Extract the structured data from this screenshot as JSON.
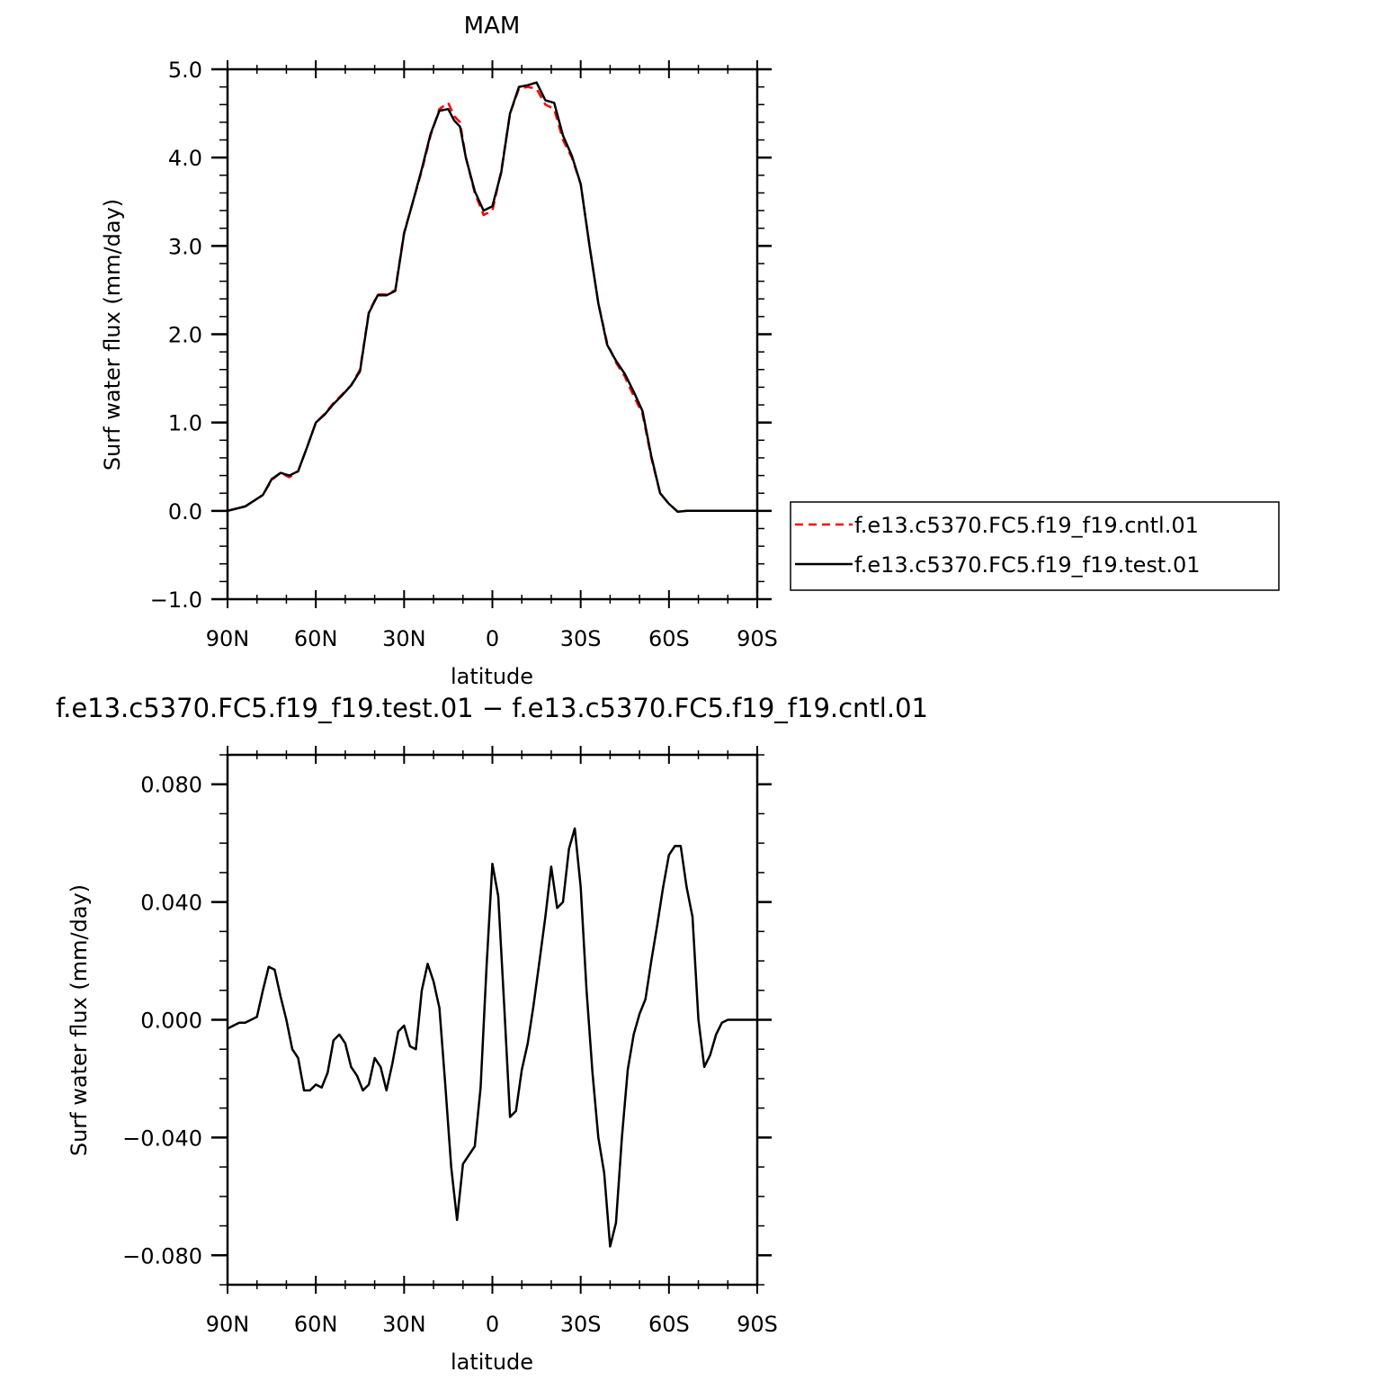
{
  "chart_data": [
    {
      "type": "line",
      "title": "MAM",
      "xlabel": "latitude",
      "ylabel": "Surf water flux (mm/day)",
      "xlim": [
        90,
        -90
      ],
      "ylim": [
        -1.0,
        5.0
      ],
      "x_ticks": [
        90,
        60,
        30,
        0,
        -30,
        -60,
        -90
      ],
      "x_tick_labels": [
        "90N",
        "60N",
        "30N",
        "0",
        "30S",
        "60S",
        "90S"
      ],
      "y_ticks": [
        -1.0,
        0.0,
        1.0,
        2.0,
        3.0,
        4.0,
        5.0
      ],
      "y_tick_labels": [
        "−1.0",
        "0.0",
        "1.0",
        "2.0",
        "3.0",
        "4.0",
        "5.0"
      ],
      "grid": false,
      "legend_position": "right",
      "series": [
        {
          "name": "f.e13.c5370.FC5.f19_f19.cntl.01",
          "color": "#ff0000",
          "dash": "dashed",
          "x": [
            90,
            84,
            78,
            75,
            72,
            69,
            66,
            63,
            60,
            57,
            54,
            51,
            48,
            45,
            42,
            39,
            36,
            33,
            30,
            27,
            24,
            21,
            18,
            15,
            13,
            11,
            9,
            6,
            3,
            0,
            -3,
            -6,
            -9,
            -12,
            -15,
            -18,
            -21,
            -24,
            -27,
            -30,
            -33,
            -36,
            -39,
            -42,
            -45,
            -48,
            -51,
            -54,
            -57,
            -60,
            -63,
            -66,
            -69,
            -72,
            -75,
            -78,
            -81,
            -84,
            -87,
            -90
          ],
          "y": [
            0.0,
            0.05,
            0.18,
            0.35,
            0.43,
            0.38,
            0.45,
            0.72,
            1.0,
            1.1,
            1.22,
            1.32,
            1.42,
            1.6,
            2.25,
            2.45,
            2.45,
            2.5,
            3.15,
            3.5,
            3.85,
            4.25,
            4.55,
            4.62,
            4.47,
            4.4,
            4.0,
            3.6,
            3.35,
            3.4,
            3.85,
            4.5,
            4.78,
            4.8,
            4.78,
            4.6,
            4.55,
            4.2,
            4.0,
            3.7,
            3.0,
            2.35,
            1.9,
            1.68,
            1.52,
            1.3,
            1.1,
            0.6,
            0.2,
            0.08,
            -0.01,
            0.0,
            0.0,
            0.0,
            0.0,
            0.0,
            0.0,
            0.0,
            0.0,
            0.0
          ]
        },
        {
          "name": "f.e13.c5370.FC5.f19_f19.test.01",
          "color": "#000000",
          "dash": "solid",
          "x": [
            90,
            84,
            78,
            75,
            72,
            69,
            66,
            63,
            60,
            57,
            54,
            51,
            48,
            45,
            42,
            39,
            36,
            33,
            30,
            27,
            24,
            21,
            18,
            15,
            13,
            11,
            9,
            6,
            3,
            0,
            -3,
            -6,
            -9,
            -12,
            -15,
            -18,
            -21,
            -24,
            -27,
            -30,
            -33,
            -36,
            -39,
            -42,
            -45,
            -48,
            -51,
            -54,
            -57,
            -60,
            -63,
            -66,
            -69,
            -72,
            -75,
            -78,
            -81,
            -84,
            -87,
            -90
          ],
          "y": [
            0.0,
            0.05,
            0.18,
            0.36,
            0.43,
            0.4,
            0.45,
            0.72,
            1.0,
            1.09,
            1.21,
            1.31,
            1.42,
            1.58,
            2.24,
            2.44,
            2.44,
            2.49,
            3.14,
            3.5,
            3.87,
            4.27,
            4.53,
            4.55,
            4.42,
            4.35,
            4.0,
            3.62,
            3.4,
            3.45,
            3.83,
            4.5,
            4.8,
            4.82,
            4.85,
            4.65,
            4.62,
            4.25,
            4.02,
            3.7,
            3.0,
            2.35,
            1.88,
            1.7,
            1.55,
            1.35,
            1.13,
            0.62,
            0.2,
            0.08,
            -0.01,
            0.0,
            0.0,
            0.0,
            0.0,
            0.0,
            0.0,
            0.0,
            0.0,
            0.0
          ]
        }
      ]
    },
    {
      "type": "line",
      "title": "f.e13.c5370.FC5.f19_f19.test.01 − f.e13.c5370.FC5.f19_f19.cntl.01",
      "xlabel": "latitude",
      "ylabel": "Surf water flux (mm/day)",
      "xlim": [
        90,
        -90
      ],
      "ylim": [
        -0.09,
        0.09
      ],
      "x_ticks": [
        90,
        60,
        30,
        0,
        -30,
        -60,
        -90
      ],
      "x_tick_labels": [
        "90N",
        "60N",
        "30N",
        "0",
        "30S",
        "60S",
        "90S"
      ],
      "y_ticks": [
        -0.08,
        -0.04,
        0.0,
        0.04,
        0.08
      ],
      "y_tick_labels": [
        "−0.080",
        "−0.040",
        "0.000",
        "0.040",
        "0.080"
      ],
      "grid": false,
      "series": [
        {
          "color": "#000000",
          "dash": "solid",
          "x": [
            90,
            88,
            86,
            84,
            82,
            80,
            78,
            76,
            74,
            72,
            70,
            68,
            66,
            64,
            62,
            60,
            58,
            56,
            54,
            52,
            50,
            48,
            46,
            44,
            42,
            40,
            38,
            36,
            34,
            32,
            30,
            28,
            26,
            24,
            22,
            20,
            18,
            16,
            14,
            12,
            10,
            8,
            6,
            4,
            2,
            0,
            -2,
            -4,
            -6,
            -8,
            -10,
            -12,
            -14,
            -16,
            -18,
            -20,
            -22,
            -24,
            -26,
            -28,
            -30,
            -32,
            -34,
            -36,
            -38,
            -40,
            -42,
            -44,
            -46,
            -48,
            -50,
            -52,
            -54,
            -56,
            -58,
            -60,
            -62,
            -64,
            -66,
            -68,
            -70,
            -72,
            -74,
            -76,
            -78,
            -80,
            -82,
            -84,
            -86,
            -88,
            -90
          ],
          "y": [
            -0.003,
            -0.002,
            -0.001,
            -0.001,
            0.0,
            0.001,
            0.01,
            0.018,
            0.017,
            0.008,
            0.0,
            -0.01,
            -0.013,
            -0.024,
            -0.024,
            -0.022,
            -0.023,
            -0.018,
            -0.007,
            -0.005,
            -0.008,
            -0.016,
            -0.019,
            -0.024,
            -0.022,
            -0.013,
            -0.016,
            -0.024,
            -0.015,
            -0.004,
            -0.002,
            -0.009,
            -0.01,
            0.01,
            0.019,
            0.013,
            0.004,
            -0.022,
            -0.05,
            -0.068,
            -0.049,
            -0.046,
            -0.043,
            -0.023,
            0.018,
            0.053,
            0.042,
            0.005,
            -0.033,
            -0.031,
            -0.017,
            -0.008,
            0.005,
            0.02,
            0.035,
            0.052,
            0.038,
            0.04,
            0.058,
            0.065,
            0.045,
            0.01,
            -0.018,
            -0.04,
            -0.052,
            -0.077,
            -0.069,
            -0.04,
            -0.017,
            -0.005,
            0.002,
            0.007,
            0.02,
            0.032,
            0.045,
            0.056,
            0.059,
            0.059,
            0.045,
            0.035,
            0.0,
            -0.016,
            -0.012,
            -0.005,
            -0.001,
            0.0,
            0.0,
            0.0,
            0.0,
            0.0,
            0.0
          ]
        }
      ]
    }
  ]
}
